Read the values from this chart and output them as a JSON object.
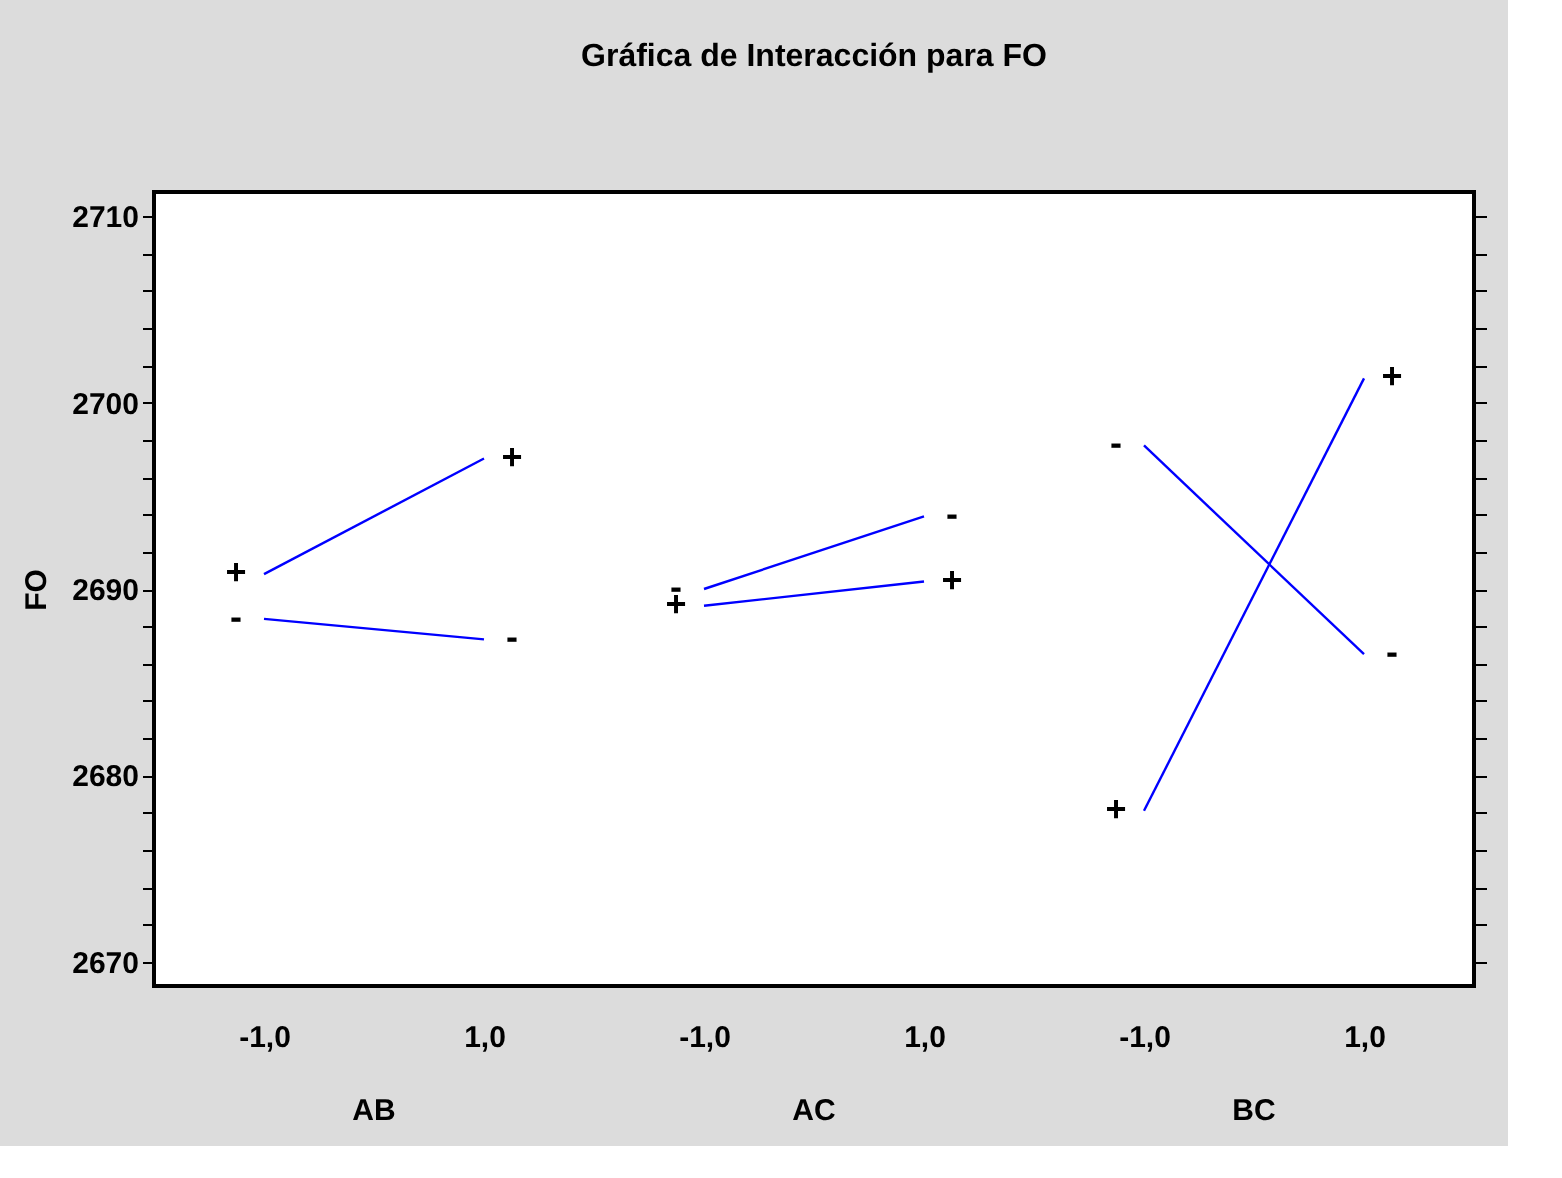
{
  "chart_data": {
    "type": "line",
    "title": "Gráfica de Interacción para FO",
    "ylabel": "FO",
    "categories": [
      "-1,0",
      "1,0",
      "-1,0",
      "1,0",
      "-1,0",
      "1,0"
    ],
    "annotations": [
      "AB",
      "AC",
      "BC"
    ],
    "series": [
      {
        "name": "+",
        "color": "#0000ff",
        "values": [
          2690.8,
          2697.0,
          null,
          null,
          null,
          null
        ]
      },
      {
        "name": "-",
        "color": "#0000ff",
        "values": [
          2688.4,
          2687.3,
          null,
          null,
          null,
          null
        ]
      },
      {
        "name": "-",
        "color": "#0000ff",
        "values": [
          null,
          null,
          2690.0,
          2693.9,
          null,
          null
        ]
      },
      {
        "name": "+",
        "color": "#0000ff",
        "values": [
          null,
          null,
          2689.1,
          2690.4,
          null,
          null
        ]
      },
      {
        "name": "-",
        "color": "#0000ff",
        "values": [
          null,
          null,
          null,
          null,
          2697.7,
          2686.5
        ]
      },
      {
        "name": "+",
        "color": "#0000ff",
        "values": [
          null,
          null,
          null,
          null,
          2678.1,
          2701.3
        ]
      }
    ],
    "ylim": [
      2668.7,
      2711.3
    ],
    "yticks": [
      2670,
      {
        "value": 2672,
        "label": null
      },
      {
        "value": 2674,
        "label": null
      },
      {
        "value": 2676,
        "label": null
      },
      {
        "value": 2678,
        "label": null
      },
      2680,
      {
        "value": 2682,
        "label": null
      },
      {
        "value": 2684,
        "label": null
      },
      {
        "value": 2686,
        "label": null
      },
      {
        "value": 2688,
        "label": null
      },
      2690,
      {
        "value": 2692,
        "label": null
      },
      {
        "value": 2694,
        "label": null
      },
      {
        "value": 2696,
        "label": null
      },
      {
        "value": 2698,
        "label": null
      },
      2700,
      {
        "value": 2702,
        "label": null
      },
      {
        "value": 2704,
        "label": null
      },
      {
        "value": 2706,
        "label": null
      },
      {
        "value": 2708,
        "label": null
      },
      2710
    ],
    "grid": false,
    "legend": false,
    "marker": "none",
    "line_style": "solid"
  }
}
